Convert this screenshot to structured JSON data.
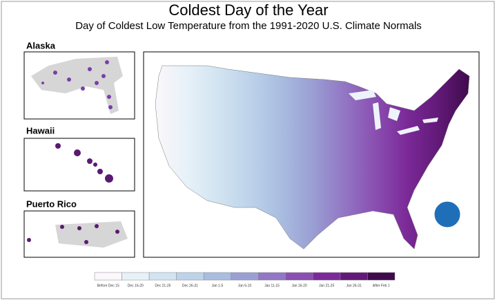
{
  "header": {
    "title": "Coldest Day of the Year",
    "subtitle": "Day of Coldest Low Temperature from the 1991-2020 U.S. Climate Normals"
  },
  "insets": [
    {
      "label": "Alaska"
    },
    {
      "label": "Hawaii"
    },
    {
      "label": "Puerto Rico"
    }
  ],
  "legend": {
    "items": [
      {
        "label": "Before Dec 15",
        "color": "#fbf7fb"
      },
      {
        "label": "Dec 16-20",
        "color": "#e7f1f8"
      },
      {
        "label": "Dec 21-25",
        "color": "#d2e4f1"
      },
      {
        "label": "Dec 26-31",
        "color": "#bdd3ea"
      },
      {
        "label": "Jan 1-5",
        "color": "#a9bde0"
      },
      {
        "label": "Jan 6-10",
        "color": "#9a9fd3"
      },
      {
        "label": "Jan 11-15",
        "color": "#9277c4"
      },
      {
        "label": "Jan 16-20",
        "color": "#8a4fb1"
      },
      {
        "label": "Jan 21-25",
        "color": "#7b2a98"
      },
      {
        "label": "Jan 26-31",
        "color": "#621a78"
      },
      {
        "label": "After Feb 1",
        "color": "#3f0b4c"
      }
    ]
  }
}
